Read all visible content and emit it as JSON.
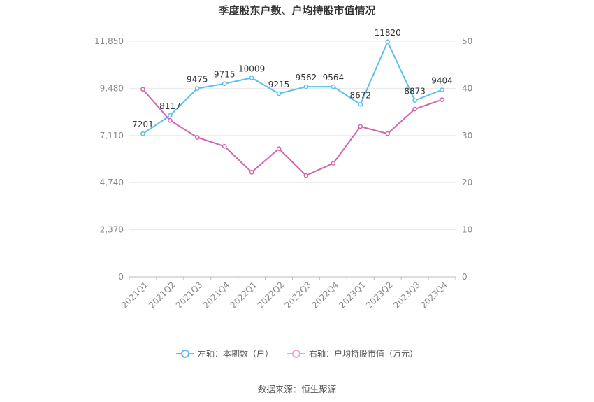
{
  "title": "季度股东户数、户均持股市值情况",
  "source": "数据来源：恒生聚源",
  "colors": {
    "left": "#5BC0EB",
    "right": "#D364AE",
    "grid": "#E8E8E8",
    "axis": "#888888"
  },
  "legend": [
    {
      "label": "左轴：本期数（户）",
      "color": "#5BC0EB"
    },
    {
      "label": "右轴：户均持股市值（万元）",
      "color": "#E8A9D2"
    }
  ],
  "chart_data": {
    "type": "line",
    "categories": [
      "2021Q1",
      "2021Q2",
      "2021Q3",
      "2021Q4",
      "2022Q1",
      "2022Q2",
      "2022Q3",
      "2022Q4",
      "2023Q1",
      "2023Q2",
      "2023Q3",
      "2023Q4"
    ],
    "left_axis": {
      "ticks": [
        "0",
        "2,370",
        "4,740",
        "7,110",
        "9,480",
        "11,850"
      ],
      "ylim": [
        0,
        11850
      ]
    },
    "right_axis": {
      "ticks": [
        "0",
        "10",
        "20",
        "30",
        "40",
        "50"
      ],
      "ylim": [
        0,
        50
      ]
    },
    "series": [
      {
        "name": "左轴：本期数（户）",
        "axis": "left",
        "values": [
          7201,
          8117,
          9475,
          9715,
          10009,
          9215,
          9562,
          9564,
          8672,
          11820,
          8873,
          9404
        ],
        "labels": [
          "7201",
          "8117",
          "9475",
          "9715",
          "10009",
          "9215",
          "9562",
          "9564",
          "8672",
          "11820",
          "8873",
          "9404"
        ]
      },
      {
        "name": "右轴：户均持股市值（万元）",
        "axis": "right",
        "values": [
          39.8,
          33.2,
          29.6,
          27.7,
          22.2,
          27.2,
          21.5,
          24.1,
          31.9,
          30.4,
          35.6,
          37.6
        ]
      }
    ],
    "grid": true,
    "legend_position": "bottom"
  }
}
